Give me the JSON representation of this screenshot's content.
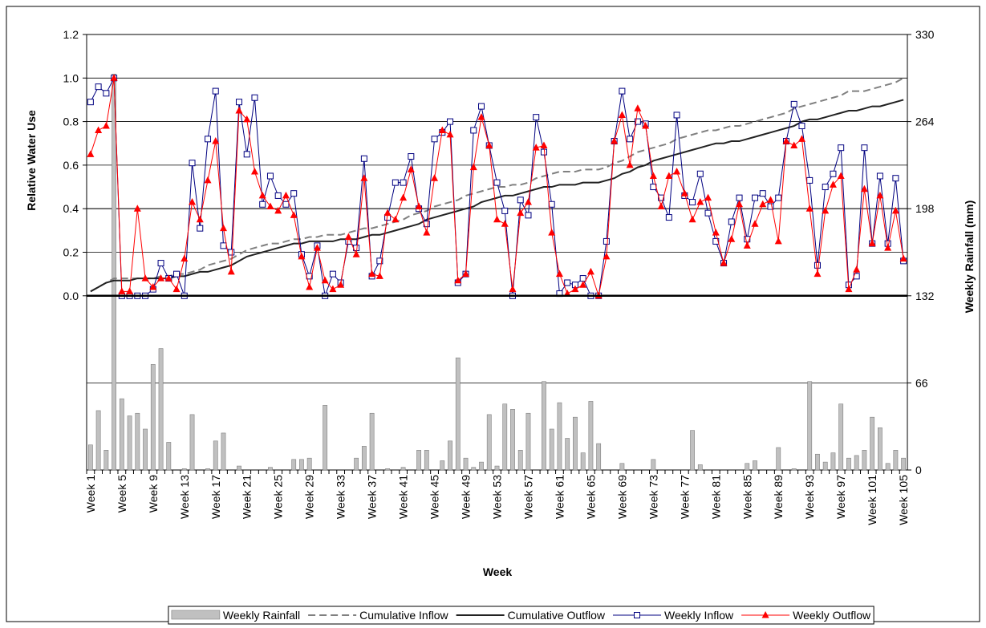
{
  "chart_data": {
    "type": "combo",
    "ylabel": "Relative Water Use",
    "y2label": "Weekly Rainfall (mm)",
    "xlabel": "Week",
    "categories": [
      "Week 1",
      null,
      null,
      null,
      "Week 5",
      null,
      null,
      null,
      "Week 9",
      null,
      null,
      null,
      "Week 13",
      null,
      null,
      null,
      "Week 17",
      null,
      null,
      null,
      "Week 21",
      null,
      null,
      null,
      "Week 25",
      null,
      null,
      null,
      "Week 29",
      null,
      null,
      null,
      "Week 33",
      null,
      null,
      null,
      "Week 37",
      null,
      null,
      null,
      "Week 41",
      null,
      null,
      null,
      "Week 45",
      null,
      null,
      null,
      "Week 49",
      null,
      null,
      null,
      "Week 53",
      null,
      null,
      null,
      "Week 57",
      null,
      null,
      null,
      "Week 61",
      null,
      null,
      null,
      "Week 65",
      null,
      null,
      null,
      "Week 69",
      null,
      null,
      null,
      "Week 73",
      null,
      null,
      null,
      "Week 77",
      null,
      null,
      null,
      "Week 81",
      null,
      null,
      null,
      "Week 85",
      null,
      null,
      null,
      "Week 89",
      null,
      null,
      null,
      "Week 93",
      null,
      null,
      null,
      "Week 97",
      null,
      null,
      null,
      "Week 101",
      null,
      null,
      null,
      "Week 105"
    ],
    "ylim": [
      -0.8,
      1.2
    ],
    "yticks": [
      {
        "value": 0,
        "label": "0.0"
      },
      0.2,
      0.4,
      0.6,
      0.8,
      {
        "value": 1,
        "label": "1.0"
      },
      1.2
    ],
    "y2lim": [
      0,
      330
    ],
    "y2ticks": [
      0,
      66,
      132,
      198,
      264,
      330
    ],
    "grid": true,
    "legend": "bottom",
    "series": [
      {
        "name": "Weekly Rainfall",
        "type": "bar",
        "axis": "y2",
        "color": "#c0c0c0",
        "values": [
          19,
          45,
          15,
          300,
          54,
          41,
          43,
          31,
          80,
          92,
          21,
          0,
          1,
          42,
          0,
          1,
          22,
          28,
          0,
          3,
          0,
          0,
          0,
          2,
          0,
          0,
          8,
          8,
          9,
          0,
          49,
          0,
          0,
          0,
          9,
          18,
          43,
          0,
          1,
          0,
          2,
          0,
          15,
          15,
          0,
          7,
          22,
          85,
          9,
          2,
          6,
          42,
          3,
          50,
          46,
          15,
          43,
          0,
          67,
          31,
          51,
          24,
          40,
          13,
          52,
          20,
          0,
          0,
          5,
          0,
          0,
          0,
          8,
          0,
          0,
          0,
          0,
          30,
          4,
          0,
          0,
          0,
          0,
          0,
          5,
          7,
          0,
          0,
          17,
          0,
          1,
          0,
          67,
          12,
          6,
          13,
          50,
          9,
          11,
          15,
          40,
          32,
          5,
          15,
          9
        ]
      },
      {
        "name": "Cumulative Inflow",
        "type": "line",
        "color": "#808080",
        "dash": true,
        "values": [
          0.02,
          0.04,
          0.06,
          0.08,
          0.08,
          0.08,
          0.08,
          0.08,
          0.08,
          0.09,
          0.09,
          0.1,
          0.1,
          0.11,
          0.12,
          0.14,
          0.15,
          0.16,
          0.17,
          0.19,
          0.21,
          0.22,
          0.23,
          0.24,
          0.24,
          0.25,
          0.26,
          0.26,
          0.27,
          0.27,
          0.28,
          0.28,
          0.28,
          0.29,
          0.3,
          0.31,
          0.31,
          0.32,
          0.33,
          0.34,
          0.35,
          0.37,
          0.38,
          0.39,
          0.41,
          0.42,
          0.43,
          0.44,
          0.46,
          0.47,
          0.48,
          0.49,
          0.5,
          0.5,
          0.51,
          0.51,
          0.52,
          0.54,
          0.55,
          0.56,
          0.57,
          0.57,
          0.57,
          0.58,
          0.58,
          0.58,
          0.59,
          0.61,
          0.62,
          0.64,
          0.66,
          0.67,
          0.68,
          0.69,
          0.7,
          0.72,
          0.73,
          0.74,
          0.75,
          0.76,
          0.76,
          0.77,
          0.78,
          0.78,
          0.79,
          0.8,
          0.81,
          0.82,
          0.83,
          0.84,
          0.86,
          0.87,
          0.88,
          0.89,
          0.9,
          0.91,
          0.92,
          0.94,
          0.94,
          0.94,
          0.95,
          0.96,
          0.97,
          0.98,
          1.0
        ]
      },
      {
        "name": "Cumulative Outflow",
        "type": "line",
        "color": "#222222",
        "values": [
          0.02,
          0.04,
          0.06,
          0.07,
          0.07,
          0.07,
          0.08,
          0.08,
          0.08,
          0.08,
          0.08,
          0.09,
          0.09,
          0.1,
          0.11,
          0.11,
          0.12,
          0.13,
          0.14,
          0.16,
          0.18,
          0.19,
          0.2,
          0.21,
          0.22,
          0.23,
          0.24,
          0.24,
          0.25,
          0.25,
          0.25,
          0.25,
          0.26,
          0.26,
          0.26,
          0.27,
          0.28,
          0.28,
          0.29,
          0.3,
          0.31,
          0.32,
          0.33,
          0.35,
          0.36,
          0.37,
          0.38,
          0.39,
          0.4,
          0.41,
          0.43,
          0.44,
          0.45,
          0.46,
          0.46,
          0.47,
          0.48,
          0.49,
          0.5,
          0.5,
          0.51,
          0.51,
          0.51,
          0.52,
          0.52,
          0.52,
          0.53,
          0.54,
          0.56,
          0.57,
          0.59,
          0.6,
          0.62,
          0.63,
          0.64,
          0.65,
          0.66,
          0.67,
          0.68,
          0.69,
          0.7,
          0.7,
          0.71,
          0.71,
          0.72,
          0.73,
          0.74,
          0.75,
          0.76,
          0.77,
          0.78,
          0.8,
          0.81,
          0.81,
          0.82,
          0.83,
          0.84,
          0.85,
          0.85,
          0.86,
          0.87,
          0.87,
          0.88,
          0.89,
          0.9
        ]
      },
      {
        "name": "Weekly Inflow",
        "type": "line",
        "color": "#000080",
        "marker": "square",
        "values": [
          0.89,
          0.96,
          0.93,
          1.0,
          0.0,
          0.0,
          0.0,
          0.0,
          0.03,
          0.15,
          0.08,
          0.1,
          0.0,
          0.61,
          0.31,
          0.72,
          0.94,
          0.23,
          0.2,
          0.89,
          0.65,
          0.91,
          0.42,
          0.55,
          0.46,
          0.42,
          0.47,
          0.19,
          0.09,
          0.23,
          0.0,
          0.1,
          0.06,
          0.25,
          0.22,
          0.63,
          0.09,
          0.16,
          0.36,
          0.52,
          0.52,
          0.64,
          0.4,
          0.33,
          0.72,
          0.75,
          0.8,
          0.06,
          0.1,
          0.76,
          0.87,
          0.69,
          0.52,
          0.39,
          0.0,
          0.44,
          0.37,
          0.82,
          0.66,
          0.42,
          0.01,
          0.06,
          0.05,
          0.08,
          0.0,
          0.0,
          0.25,
          0.71,
          0.94,
          0.72,
          0.8,
          0.79,
          0.5,
          0.45,
          0.36,
          0.83,
          0.46,
          0.43,
          0.56,
          0.38,
          0.25,
          0.15,
          0.34,
          0.45,
          0.26,
          0.45,
          0.47,
          0.41,
          0.45,
          0.71,
          0.88,
          0.78,
          0.53,
          0.14,
          0.5,
          0.56,
          0.68,
          0.05,
          0.09,
          0.68,
          0.24,
          0.55,
          0.24,
          0.54,
          0.16
        ]
      },
      {
        "name": "Weekly Outflow",
        "type": "line",
        "color": "#ff0000",
        "marker": "triangle",
        "values": [
          0.65,
          0.76,
          0.78,
          1.0,
          0.02,
          0.02,
          0.4,
          0.08,
          0.04,
          0.08,
          0.08,
          0.03,
          0.17,
          0.43,
          0.35,
          0.53,
          0.71,
          0.31,
          0.11,
          0.85,
          0.81,
          0.57,
          0.46,
          0.41,
          0.39,
          0.46,
          0.37,
          0.18,
          0.04,
          0.22,
          0.07,
          0.03,
          0.05,
          0.27,
          0.19,
          0.54,
          0.1,
          0.09,
          0.38,
          0.35,
          0.45,
          0.58,
          0.41,
          0.29,
          0.54,
          0.76,
          0.74,
          0.07,
          0.1,
          0.59,
          0.82,
          0.69,
          0.35,
          0.33,
          0.03,
          0.38,
          0.43,
          0.68,
          0.69,
          0.29,
          0.1,
          0.01,
          0.03,
          0.05,
          0.11,
          0.0,
          0.18,
          0.71,
          0.83,
          0.6,
          0.86,
          0.78,
          0.55,
          0.41,
          0.55,
          0.57,
          0.47,
          0.35,
          0.43,
          0.45,
          0.29,
          0.15,
          0.26,
          0.42,
          0.23,
          0.33,
          0.42,
          0.44,
          0.25,
          0.71,
          0.69,
          0.72,
          0.4,
          0.1,
          0.39,
          0.51,
          0.55,
          0.03,
          0.12,
          0.49,
          0.24,
          0.46,
          0.22,
          0.39,
          0.17
        ]
      }
    ]
  }
}
